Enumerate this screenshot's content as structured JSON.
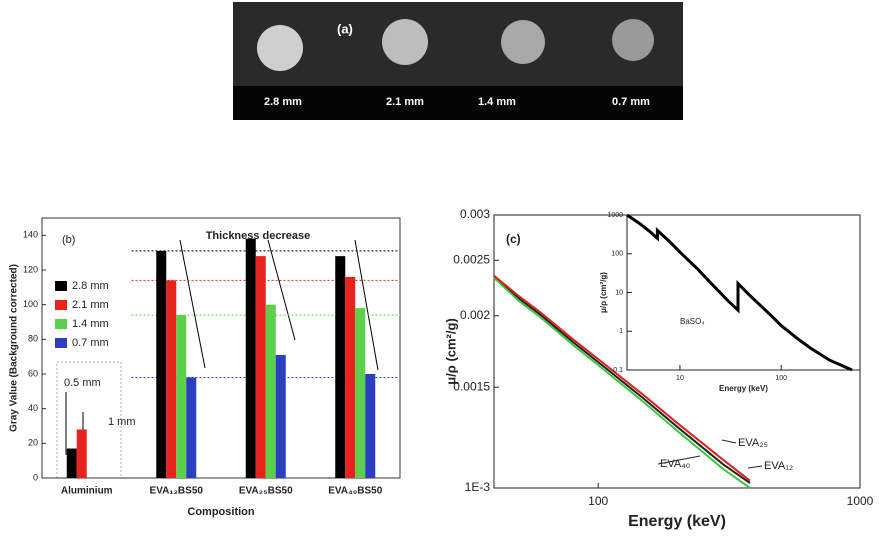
{
  "image_panel": {
    "label": "(a)",
    "disc_labels": [
      "2.8 mm",
      "2.1 mm",
      "1.4 mm",
      "0.7 mm"
    ]
  },
  "chart_data": [
    {
      "type": "bar",
      "panel_label": "(b)",
      "ylabel": "Gray Value (Background corrected)",
      "xlabel": "Composition",
      "categories": [
        "Aluminium",
        "EVA₁₂BS50",
        "EVA₂₅BS50",
        "EVA₄₀BS50"
      ],
      "series": [
        {
          "name": "2.8 mm",
          "color": "#000000",
          "values": [
            17,
            131,
            138,
            128
          ]
        },
        {
          "name": "2.1 mm",
          "color": "#e8221c",
          "values": [
            28,
            114,
            128,
            116
          ]
        },
        {
          "name": "1.4 mm",
          "color": "#5cd04a",
          "values": [
            null,
            94,
            100,
            98
          ]
        },
        {
          "name": "0.7 mm",
          "color": "#2b3fc0",
          "values": [
            null,
            58,
            71,
            60
          ]
        }
      ],
      "reference_lines": [
        {
          "value": 131,
          "color": "#000000"
        },
        {
          "value": 114,
          "color": "#e8221c"
        },
        {
          "value": 94,
          "color": "#5cd04a"
        },
        {
          "value": 58,
          "color": "#2b3fc0"
        }
      ],
      "annotations": [
        "Thickness decrease",
        "0.5 mm",
        "1 mm"
      ],
      "ylim": [
        0,
        150
      ],
      "yticks": [
        0,
        20,
        40,
        60,
        80,
        100,
        120,
        140
      ]
    },
    {
      "type": "line",
      "panel_label": "(c)",
      "log_x": true,
      "log_y": true,
      "ylabel": "μ/ρ (cm²/g)",
      "xlabel": "Energy (keV)",
      "x": [
        40,
        50,
        60,
        80,
        100,
        150,
        200,
        300,
        380
      ],
      "series": [
        {
          "name": "EVA₁₂",
          "color": "#222222",
          "values": [
            0.00234,
            0.00214,
            0.00201,
            0.0018,
            0.00166,
            0.00143,
            0.00128,
            0.0011,
            0.00102
          ]
        },
        {
          "name": "EVA₄₀",
          "color": "#3cc83c",
          "values": [
            0.00233,
            0.00212,
            0.00199,
            0.00178,
            0.00164,
            0.00141,
            0.00126,
            0.00108,
            0.001
          ]
        },
        {
          "name": "EVA₂₅",
          "color": "#e01e1e",
          "values": [
            0.00235,
            0.00216,
            0.00203,
            0.00182,
            0.00168,
            0.00145,
            0.0013,
            0.00112,
            0.00103
          ]
        }
      ],
      "xlim": [
        40,
        1000
      ],
      "xticks": [
        100,
        1000
      ],
      "ylim": [
        0.001,
        0.003
      ],
      "yticks": [
        {
          "value": 0.001,
          "label": "1E-3"
        },
        0.0015,
        0.002,
        0.0025,
        0.003
      ]
    },
    {
      "type": "line",
      "inset": true,
      "log_x": true,
      "log_y": true,
      "annotation": "BaSO₄",
      "ylabel": "μ/ρ (cm²/g)",
      "xlabel": "Energy (keV)",
      "x": [
        3,
        4,
        5,
        5.99,
        5.99,
        8,
        10,
        15,
        20,
        30,
        37.4,
        37.4,
        50,
        80,
        100,
        150,
        200,
        300,
        500
      ],
      "series": [
        {
          "name": "BaSO₄",
          "color": "#000000",
          "values": [
            1000,
            600,
            380,
            250,
            400,
            200,
            110,
            40,
            18,
            6,
            3.5,
            17,
            8,
            2.5,
            1.4,
            0.6,
            0.35,
            0.18,
            0.1
          ]
        }
      ],
      "xlim": [
        3,
        600
      ],
      "xticks": [
        10,
        100
      ],
      "ylim": [
        0.1,
        1000
      ],
      "yticks": [
        0.1,
        1,
        10,
        100,
        1000
      ]
    }
  ]
}
